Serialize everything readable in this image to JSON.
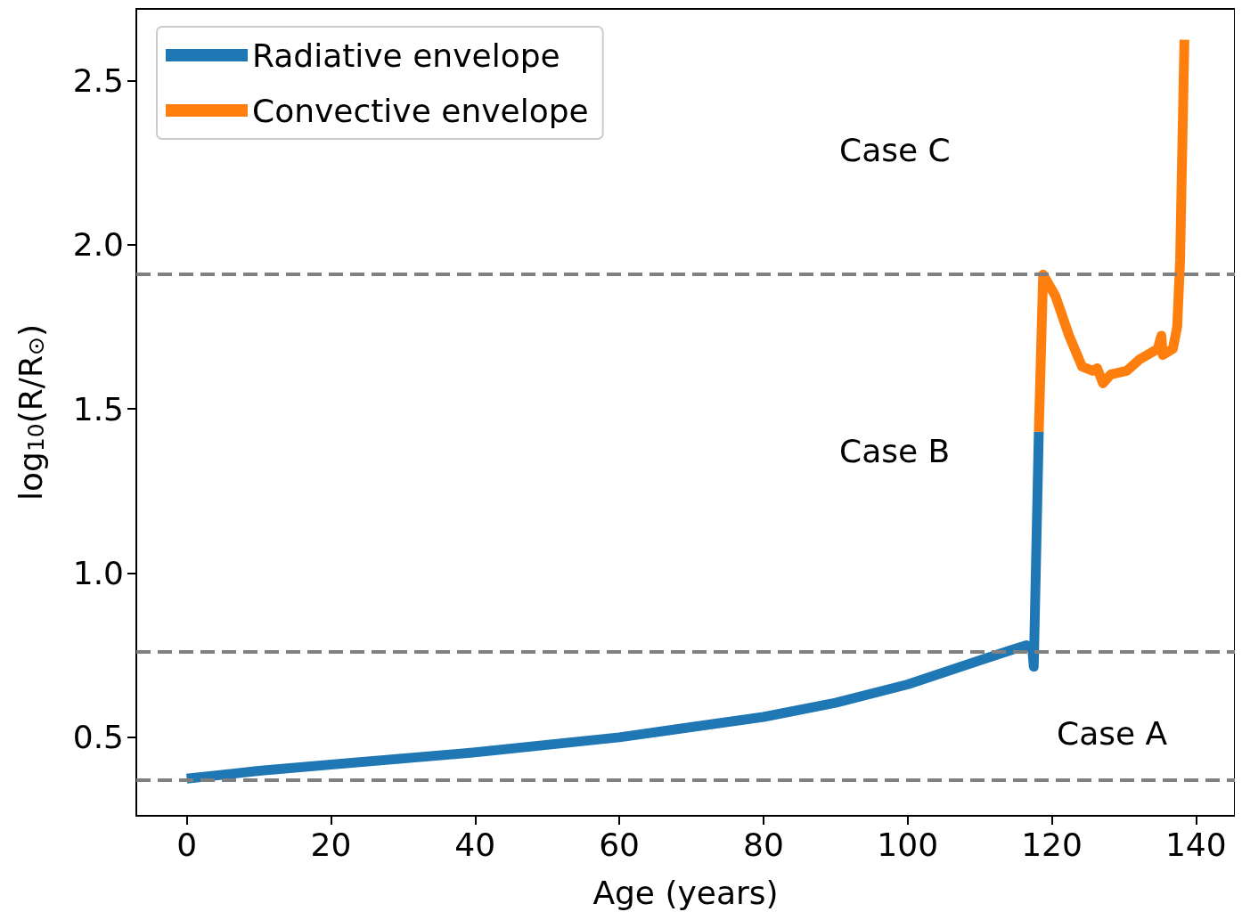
{
  "chart_data": {
    "type": "line",
    "xlabel": "Age (years)",
    "ylabel": "log$_{10}$(R/R$_{⊙}$)",
    "xlim": [
      -7,
      145.4
    ],
    "ylim": [
      0.261,
      2.718
    ],
    "xticks": [
      0,
      20,
      40,
      60,
      80,
      100,
      120,
      140
    ],
    "yticks": [
      0.5,
      {
        "value": 1,
        "label": "1.0"
      },
      1.5,
      {
        "value": 2,
        "label": "2.0"
      },
      2.5
    ],
    "grid": false,
    "legend": "top left",
    "marker": "none",
    "line_style": "solid",
    "series": [
      {
        "name": "Radiative envelope",
        "color": "#1f77b4",
        "x": [
          0,
          10,
          20,
          40,
          60,
          80,
          90,
          100,
          110,
          115,
          116.5,
          117.3,
          117.5,
          118.2
        ],
        "values": [
          0.374,
          0.398,
          0.417,
          0.454,
          0.5,
          0.562,
          0.605,
          0.661,
          0.734,
          0.77,
          0.78,
          0.769,
          0.715,
          1.43
        ]
      },
      {
        "name": "Convective envelope",
        "color": "#ff7f0e",
        "x": [
          118.2,
          118.8,
          120.5,
          122.4,
          124.2,
          125.7,
          126.3,
          127.1,
          128.2,
          130.4,
          132.2,
          134.7,
          135.2,
          135.4,
          136.8,
          137.4,
          137.8,
          138.4
        ],
        "values": [
          1.43,
          1.909,
          1.844,
          1.723,
          1.629,
          1.616,
          1.624,
          1.578,
          1.605,
          1.616,
          1.651,
          1.683,
          1.723,
          1.664,
          1.683,
          1.75,
          1.952,
          2.624
        ]
      }
    ],
    "ref_lines": [
      {
        "axis": "y",
        "value": 1.909,
        "color": "#808080",
        "line_style": "dashed"
      },
      {
        "axis": "y",
        "value": 0.761,
        "color": "#808080",
        "line_style": "dashed"
      },
      {
        "axis": "y",
        "value": 0.374,
        "color": "#808080",
        "line_style": "dashed"
      }
    ],
    "annotations": [
      "Case C",
      "Case B",
      "Case A"
    ]
  }
}
